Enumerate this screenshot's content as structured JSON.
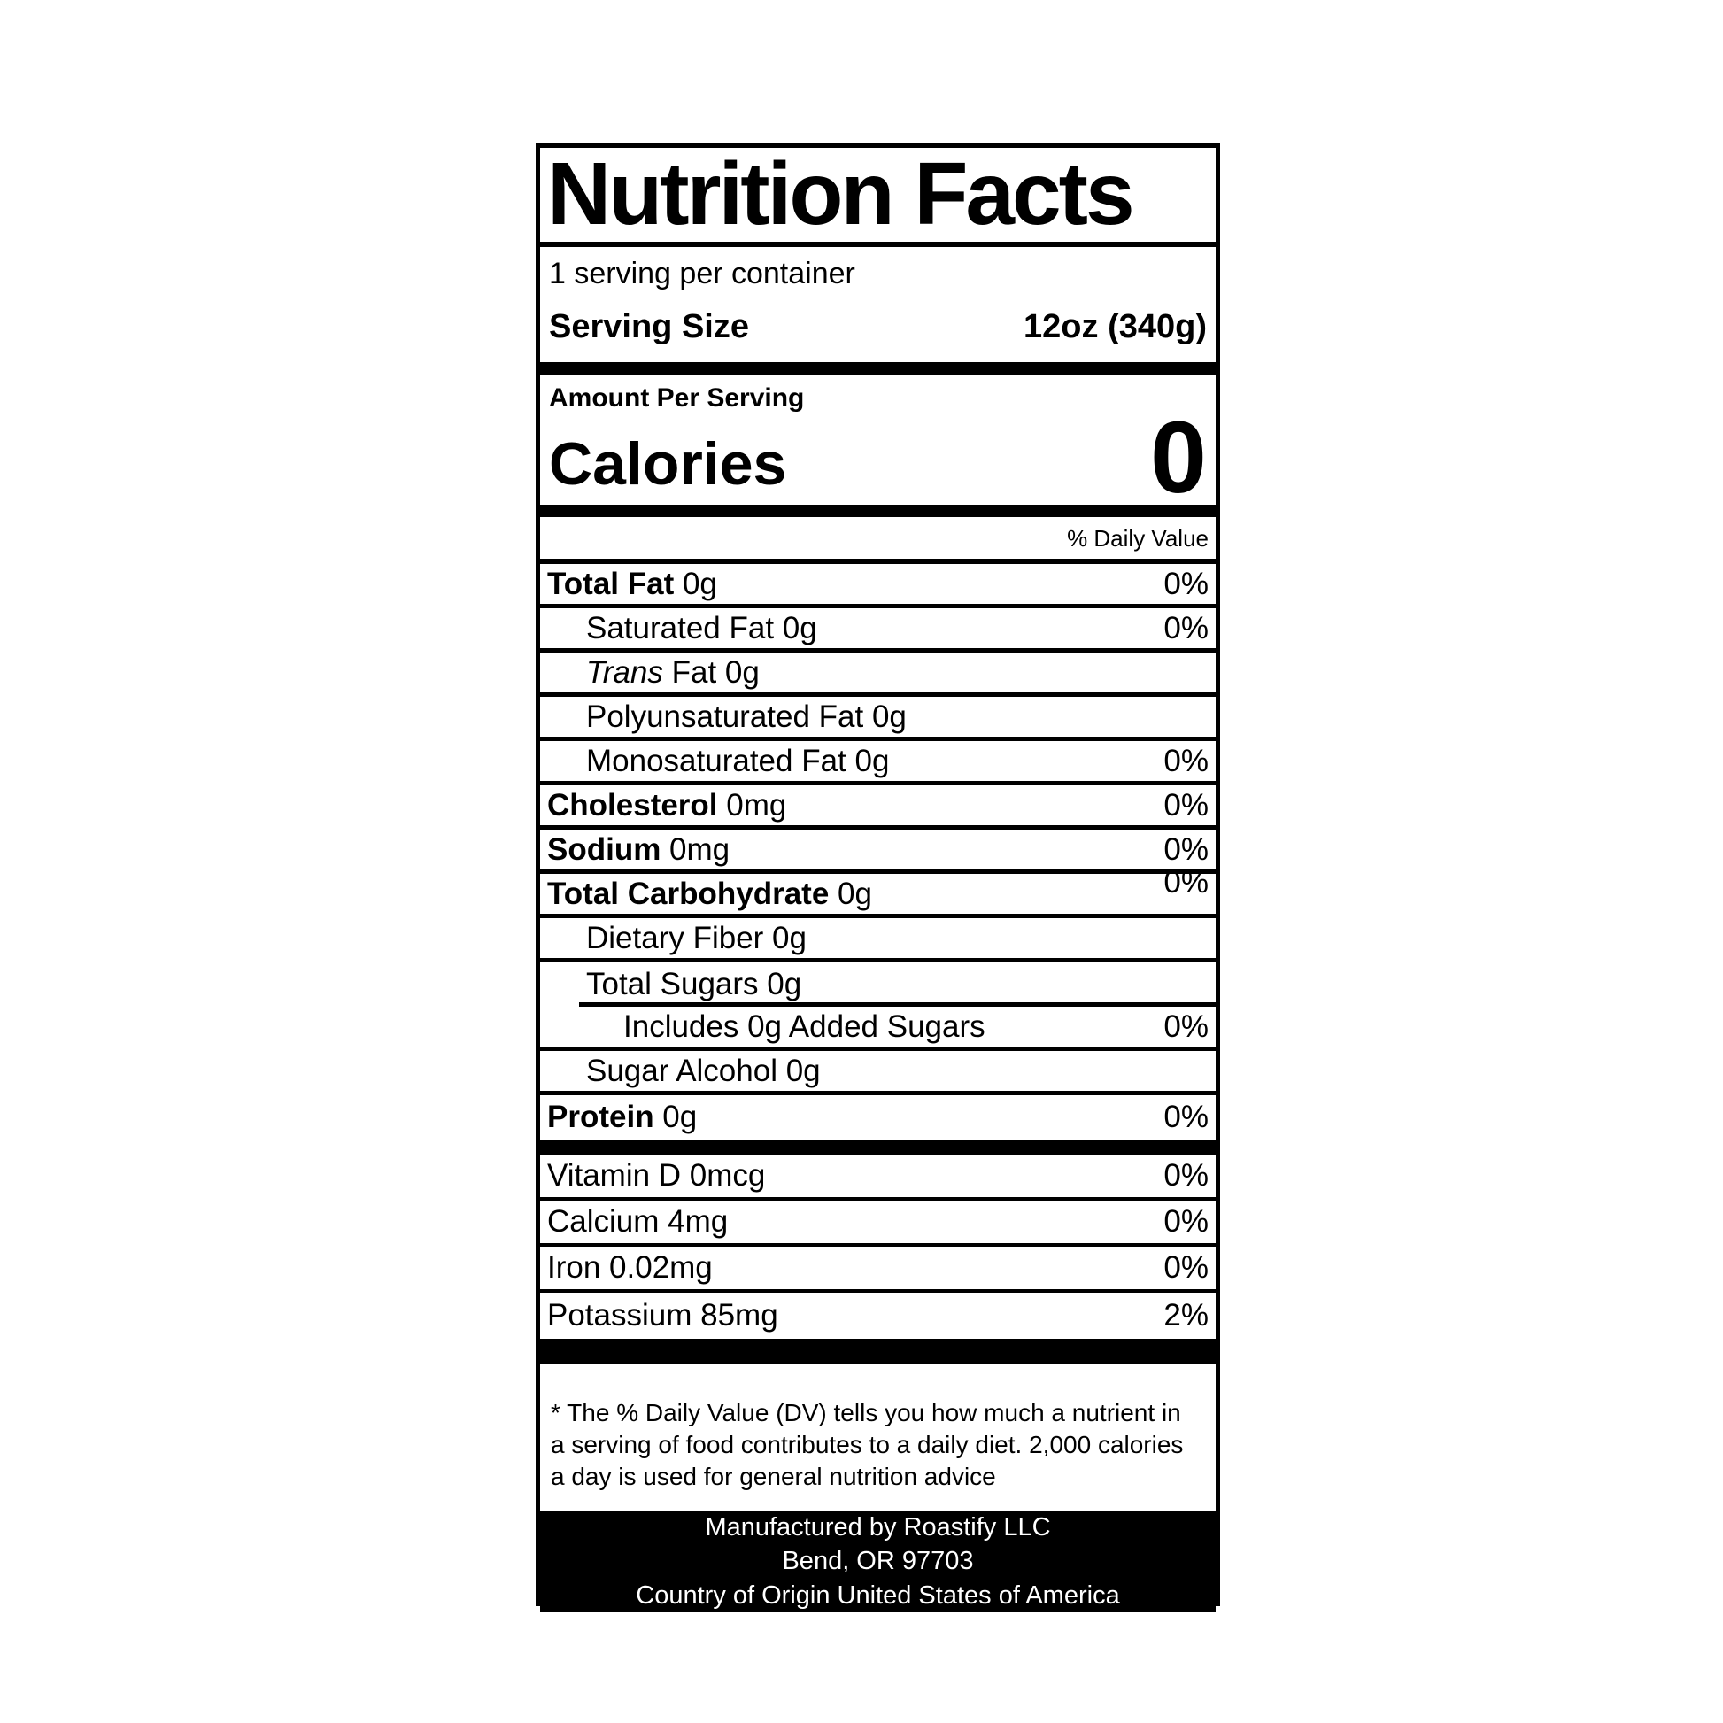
{
  "label": {
    "title": "Nutrition Facts",
    "servings_per_container": "1 serving per container",
    "serving_size_label": "Serving Size",
    "serving_size_value": "12oz (340g)",
    "amount_per_serving": "Amount Per Serving",
    "calories_label": "Calories",
    "calories_value": "0",
    "daily_value_header": "% Daily Value",
    "nutrient_rows": [
      {
        "bold": "Total Fat",
        "text": " 0g",
        "pct": "0%",
        "indent": 0
      },
      {
        "text": "Saturated Fat 0g",
        "pct": "0%",
        "indent": 1
      },
      {
        "italic": "Trans",
        "text": " Fat 0g",
        "pct": "",
        "indent": 1
      },
      {
        "text": "Polyunsaturated Fat 0g",
        "pct": "",
        "indent": 1
      },
      {
        "text": "Monosaturated Fat 0g",
        "pct": "0%",
        "indent": 1
      },
      {
        "bold": "Cholesterol",
        "text": " 0mg",
        "pct": "0%",
        "indent": 0
      },
      {
        "bold": "Sodium",
        "text": " 0mg",
        "pct": "0%",
        "indent": 0
      },
      {
        "bold": "Total Carbohydrate",
        "text": " 0g",
        "pct": "0%",
        "indent": 0,
        "pctRaised": true
      },
      {
        "text": "Dietary Fiber 0g",
        "pct": "",
        "indent": 1
      },
      {
        "text": "Total Sugars 0g",
        "pct": "",
        "indent": 1,
        "partialRule": true
      },
      {
        "text": "Includes 0g Added Sugars",
        "pct": "0%",
        "indent": 2
      },
      {
        "text": "Sugar Alcohol 0g",
        "pct": "",
        "indent": 1
      },
      {
        "bold": "Protein",
        "text": " 0g",
        "pct": "0%",
        "indent": 0,
        "last": true
      }
    ],
    "micro_rows": [
      {
        "text": "Vitamin D 0mcg",
        "pct": "0%"
      },
      {
        "text": "Calcium 4mg",
        "pct": "0%"
      },
      {
        "text": "Iron 0.02mg",
        "pct": "0%"
      },
      {
        "text": "Potassium 85mg",
        "pct": "2%",
        "last": true
      }
    ],
    "footnote_lines": [
      "* The % Daily Value (DV) tells you how much a nutrient in",
      "a serving of food contributes to a daily diet. 2,000 calories",
      "a day is used for general nutrition advice"
    ],
    "footer_lines": [
      "Manufactured by Roastify LLC",
      "Bend, OR 97703",
      "Country of Origin United States of America"
    ]
  }
}
